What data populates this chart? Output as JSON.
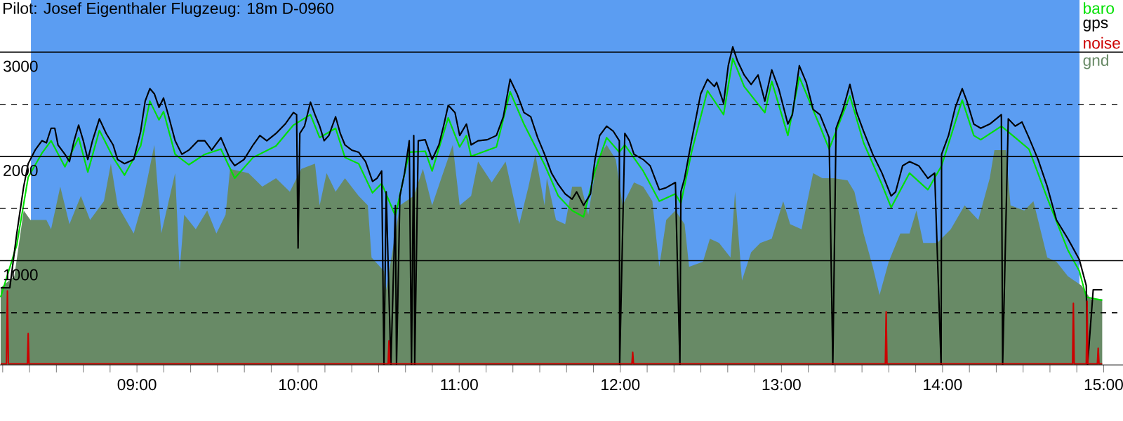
{
  "chart_data": {
    "type": "line",
    "title": "Pilot: Josef Eigenthaler Flugzeug: 18m D-0960",
    "xlim": [
      8.15,
      15.12
    ],
    "xticks": [
      {
        "value": 8.1667,
        "label": null
      },
      {
        "value": 8.3333,
        "label": null
      },
      {
        "value": 8.5,
        "label": null
      },
      {
        "value": 8.6667,
        "label": null
      },
      {
        "value": 8.8333,
        "label": null
      },
      {
        "value": 9,
        "label": "09:00"
      },
      {
        "value": 9.1667,
        "label": null
      },
      {
        "value": 9.3333,
        "label": null
      },
      {
        "value": 9.5,
        "label": null
      },
      {
        "value": 9.6667,
        "label": null
      },
      {
        "value": 9.8333,
        "label": null
      },
      {
        "value": 10,
        "label": "10:00"
      },
      {
        "value": 10.1667,
        "label": null
      },
      {
        "value": 10.3333,
        "label": null
      },
      {
        "value": 10.5,
        "label": null
      },
      {
        "value": 10.6667,
        "label": null
      },
      {
        "value": 10.8333,
        "label": null
      },
      {
        "value": 11,
        "label": "11:00"
      },
      {
        "value": 11.1667,
        "label": null
      },
      {
        "value": 11.3333,
        "label": null
      },
      {
        "value": 11.5,
        "label": null
      },
      {
        "value": 11.6667,
        "label": null
      },
      {
        "value": 11.8333,
        "label": null
      },
      {
        "value": 12,
        "label": "12:00"
      },
      {
        "value": 12.1667,
        "label": null
      },
      {
        "value": 12.3333,
        "label": null
      },
      {
        "value": 12.5,
        "label": null
      },
      {
        "value": 12.6667,
        "label": null
      },
      {
        "value": 12.8333,
        "label": null
      },
      {
        "value": 13,
        "label": "13:00"
      },
      {
        "value": 13.1667,
        "label": null
      },
      {
        "value": 13.3333,
        "label": null
      },
      {
        "value": 13.5,
        "label": null
      },
      {
        "value": 13.6667,
        "label": null
      },
      {
        "value": 13.8333,
        "label": null
      },
      {
        "value": 14,
        "label": "14:00"
      },
      {
        "value": 14.1667,
        "label": null
      },
      {
        "value": 14.3333,
        "label": null
      },
      {
        "value": 14.5,
        "label": null
      },
      {
        "value": 14.6667,
        "label": null
      },
      {
        "value": 14.8333,
        "label": null
      },
      {
        "value": 15,
        "label": "15:00"
      }
    ],
    "ylim": [
      0,
      3500
    ],
    "yticks": [
      {
        "value": 500,
        "label": null
      },
      1000,
      {
        "value": 1500,
        "label": null
      },
      2000,
      {
        "value": 2500,
        "label": null
      },
      3000
    ],
    "grid": "y",
    "legend": "top right",
    "bands": [
      {
        "axis": "x",
        "from": 8.342,
        "to": 14.85,
        "color": "#5b9df2"
      }
    ],
    "series": [
      {
        "name": "baro",
        "color": "#00e000",
        "x": [
          8.154,
          8.254,
          8.325,
          8.41,
          8.467,
          8.553,
          8.638,
          8.695,
          8.767,
          8.852,
          8.923,
          9.023,
          9.08,
          9.137,
          9.165,
          9.237,
          9.322,
          9.421,
          9.521,
          9.607,
          9.721,
          9.863,
          9.971,
          10.077,
          10.134,
          10.233,
          10.291,
          10.376,
          10.462,
          10.519,
          10.604,
          10.69,
          10.789,
          10.832,
          10.932,
          11.003,
          11.045,
          11.074,
          11.231,
          11.316,
          11.402,
          11.53,
          11.615,
          11.701,
          11.772,
          11.843,
          11.915,
          11.994,
          12.028,
          12.142,
          12.242,
          12.342,
          12.376,
          12.442,
          12.541,
          12.641,
          12.698,
          12.769,
          12.897,
          12.94,
          13.04,
          13.111,
          13.239,
          13.296,
          13.425,
          13.51,
          13.624,
          13.681,
          13.795,
          13.909,
          13.994,
          14.122,
          14.194,
          14.237,
          14.365,
          14.451,
          14.536,
          14.65,
          14.778,
          14.849,
          14.892,
          14.991
        ],
        "values": [
          650,
          1150,
          1800,
          2030,
          2150,
          1900,
          2180,
          1850,
          2250,
          1990,
          1820,
          2100,
          2530,
          2350,
          2430,
          2020,
          1920,
          2020,
          2070,
          1790,
          1990,
          2100,
          2300,
          2400,
          2180,
          2270,
          1990,
          1930,
          1650,
          1740,
          1430,
          2040,
          2050,
          1860,
          2370,
          2090,
          2200,
          2000,
          2090,
          2620,
          2310,
          1920,
          1620,
          1480,
          1420,
          1860,
          2180,
          2040,
          2110,
          1860,
          1570,
          1640,
          1550,
          2040,
          2630,
          2400,
          2940,
          2670,
          2420,
          2720,
          2200,
          2760,
          2290,
          2070,
          2580,
          2130,
          1730,
          1510,
          1840,
          1680,
          1910,
          2540,
          2200,
          2160,
          2290,
          2180,
          2070,
          1600,
          1100,
          900,
          650,
          620
        ]
      },
      {
        "name": "gps",
        "color": "#000000",
        "x": [
          8.154,
          8.211,
          8.254,
          8.297,
          8.325,
          8.368,
          8.41,
          8.438,
          8.467,
          8.49,
          8.51,
          8.553,
          8.581,
          8.61,
          8.638,
          8.667,
          8.695,
          8.724,
          8.767,
          8.809,
          8.852,
          8.88,
          8.923,
          8.98,
          9.023,
          9.051,
          9.08,
          9.108,
          9.137,
          9.165,
          9.194,
          9.237,
          9.279,
          9.322,
          9.379,
          9.421,
          9.464,
          9.521,
          9.579,
          9.607,
          9.664,
          9.721,
          9.763,
          9.806,
          9.863,
          9.92,
          9.971,
          9.991,
          10.0,
          10.011,
          10.04,
          10.077,
          10.105,
          10.134,
          10.162,
          10.191,
          10.233,
          10.262,
          10.291,
          10.333,
          10.376,
          10.419,
          10.462,
          10.49,
          10.519,
          10.533,
          10.547,
          10.576,
          10.604,
          10.611,
          10.632,
          10.661,
          10.69,
          10.704,
          10.718,
          10.724,
          10.746,
          10.789,
          10.832,
          10.874,
          10.903,
          10.932,
          10.974,
          11.003,
          11.045,
          11.074,
          11.117,
          11.174,
          11.231,
          11.274,
          11.316,
          11.359,
          11.402,
          11.444,
          11.487,
          11.53,
          11.573,
          11.615,
          11.658,
          11.701,
          11.729,
          11.772,
          11.815,
          11.843,
          11.872,
          11.915,
          11.957,
          11.994,
          11.996,
          12.028,
          12.057,
          12.085,
          12.142,
          12.185,
          12.242,
          12.285,
          12.342,
          12.37,
          12.376,
          12.399,
          12.442,
          12.499,
          12.541,
          12.584,
          12.598,
          12.641,
          12.67,
          12.698,
          12.726,
          12.769,
          12.812,
          12.855,
          12.897,
          12.94,
          12.983,
          13.04,
          13.068,
          13.111,
          13.154,
          13.197,
          13.239,
          13.296,
          13.319,
          13.339,
          13.382,
          13.425,
          13.467,
          13.51,
          13.567,
          13.624,
          13.681,
          13.709,
          13.752,
          13.795,
          13.852,
          13.909,
          13.951,
          13.991,
          13.994,
          14.037,
          14.079,
          14.122,
          14.151,
          14.194,
          14.237,
          14.293,
          14.365,
          14.373,
          14.408,
          14.451,
          14.493,
          14.536,
          14.593,
          14.65,
          14.707,
          14.778,
          14.849,
          14.892,
          14.9,
          14.935,
          14.991
        ],
        "values": [
          740,
          740,
          1260,
          1710,
          1930,
          2060,
          2150,
          2130,
          2270,
          2270,
          2110,
          2020,
          1950,
          2150,
          2300,
          2150,
          1970,
          2150,
          2360,
          2220,
          2110,
          1970,
          1930,
          1970,
          2240,
          2530,
          2650,
          2600,
          2470,
          2560,
          2400,
          2150,
          2020,
          2060,
          2150,
          2150,
          2060,
          2180,
          1970,
          1910,
          1970,
          2110,
          2200,
          2150,
          2220,
          2310,
          2420,
          2400,
          1120,
          2220,
          2290,
          2520,
          2400,
          2290,
          2150,
          2200,
          2380,
          2220,
          2110,
          2060,
          2040,
          1950,
          1760,
          1790,
          1860,
          0,
          1660,
          0,
          1530,
          0,
          1620,
          1840,
          2150,
          0,
          2200,
          0,
          2150,
          2160,
          1970,
          2110,
          2290,
          2490,
          2420,
          2200,
          2310,
          2110,
          2150,
          2160,
          2200,
          2380,
          2740,
          2600,
          2420,
          2380,
          2180,
          2020,
          1840,
          1730,
          1640,
          1590,
          1660,
          1530,
          1640,
          1970,
          2200,
          2290,
          2240,
          2150,
          0,
          2220,
          2150,
          2020,
          1970,
          1910,
          1680,
          1700,
          1750,
          0,
          1660,
          1790,
          2150,
          2600,
          2740,
          2670,
          2710,
          2510,
          2870,
          3050,
          2920,
          2780,
          2690,
          2780,
          2530,
          2830,
          2650,
          2310,
          2400,
          2870,
          2710,
          2450,
          2400,
          2180,
          0,
          2270,
          2450,
          2690,
          2420,
          2240,
          2020,
          1840,
          1620,
          1660,
          1910,
          1950,
          1910,
          1790,
          1840,
          0,
          2020,
          2200,
          2470,
          2650,
          2530,
          2310,
          2270,
          2310,
          2400,
          0,
          2360,
          2290,
          2330,
          2180,
          1970,
          1710,
          1390,
          1210,
          1010,
          760,
          0,
          720,
          720
        ]
      },
      {
        "name": "noise",
        "color": "#cc0000",
        "x": [
          8.154,
          8.19,
          8.196,
          8.202,
          8.32,
          8.325,
          8.33,
          10.559,
          10.564,
          10.569,
          12.072,
          12.077,
          12.082,
          13.645,
          13.65,
          13.655,
          14.807,
          14.812,
          14.817,
          14.892,
          14.897,
          14.902,
          14.961,
          14.966,
          14.971,
          14.991
        ],
        "values": [
          10,
          10,
          710,
          10,
          10,
          300,
          10,
          10,
          230,
          10,
          10,
          120,
          10,
          10,
          510,
          10,
          10,
          590,
          10,
          10,
          610,
          10,
          10,
          160,
          10,
          10
        ]
      },
      {
        "name": "gnd",
        "color": "#688a66",
        "type": "area",
        "x": [
          8.154,
          8.239,
          8.297,
          8.339,
          8.438,
          8.467,
          8.524,
          8.581,
          8.652,
          8.709,
          8.795,
          8.838,
          8.88,
          8.98,
          9.037,
          9.108,
          9.151,
          9.237,
          9.265,
          9.293,
          9.365,
          9.436,
          9.493,
          9.55,
          9.578,
          9.692,
          9.778,
          9.863,
          9.949,
          10.02,
          10.105,
          10.134,
          10.177,
          10.233,
          10.291,
          10.376,
          10.433,
          10.456,
          10.533,
          10.547,
          10.632,
          10.718,
          10.775,
          10.832,
          10.889,
          10.96,
          11.003,
          11.074,
          11.117,
          11.202,
          11.288,
          11.373,
          11.43,
          11.473,
          11.53,
          11.544,
          11.601,
          11.658,
          11.701,
          11.758,
          11.801,
          11.857,
          11.915,
          11.972,
          12.014,
          12.085,
          12.142,
          12.199,
          12.242,
          12.285,
          12.342,
          12.399,
          12.427,
          12.513,
          12.556,
          12.613,
          12.684,
          12.712,
          12.755,
          12.812,
          12.869,
          12.94,
          13.011,
          13.054,
          13.125,
          13.197,
          13.254,
          13.325,
          13.41,
          13.453,
          13.51,
          13.567,
          13.609,
          13.666,
          13.738,
          13.795,
          13.838,
          13.88,
          13.966,
          14.051,
          14.137,
          14.222,
          14.293,
          14.322,
          14.393,
          14.422,
          14.507,
          14.564,
          14.65,
          14.707,
          14.778,
          14.863,
          14.92,
          14.991
        ],
        "values": [
          740,
          850,
          1480,
          1390,
          1390,
          1300,
          1710,
          1350,
          1620,
          1390,
          1570,
          1930,
          1530,
          1260,
          1570,
          2110,
          1260,
          1840,
          900,
          1440,
          1300,
          1480,
          1260,
          1440,
          1880,
          1840,
          1710,
          1790,
          1660,
          1880,
          1930,
          1530,
          1840,
          1660,
          1790,
          1620,
          1530,
          1030,
          900,
          720,
          1530,
          1620,
          1880,
          1530,
          1790,
          2110,
          1530,
          1620,
          1950,
          1750,
          1950,
          1350,
          1710,
          2020,
          1530,
          1790,
          1390,
          1350,
          1710,
          1710,
          1440,
          1970,
          2110,
          1970,
          1530,
          1750,
          1710,
          1570,
          940,
          1390,
          1480,
          1350,
          940,
          990,
          1210,
          1170,
          1030,
          1660,
          810,
          1080,
          1170,
          1210,
          1570,
          1350,
          1300,
          1840,
          1790,
          1790,
          1770,
          1660,
          1260,
          940,
          670,
          990,
          1260,
          1260,
          1480,
          1170,
          1170,
          1300,
          1530,
          1390,
          1790,
          2060,
          2060,
          1530,
          1480,
          1570,
          1030,
          990,
          850,
          760,
          630,
          630
        ]
      }
    ]
  }
}
